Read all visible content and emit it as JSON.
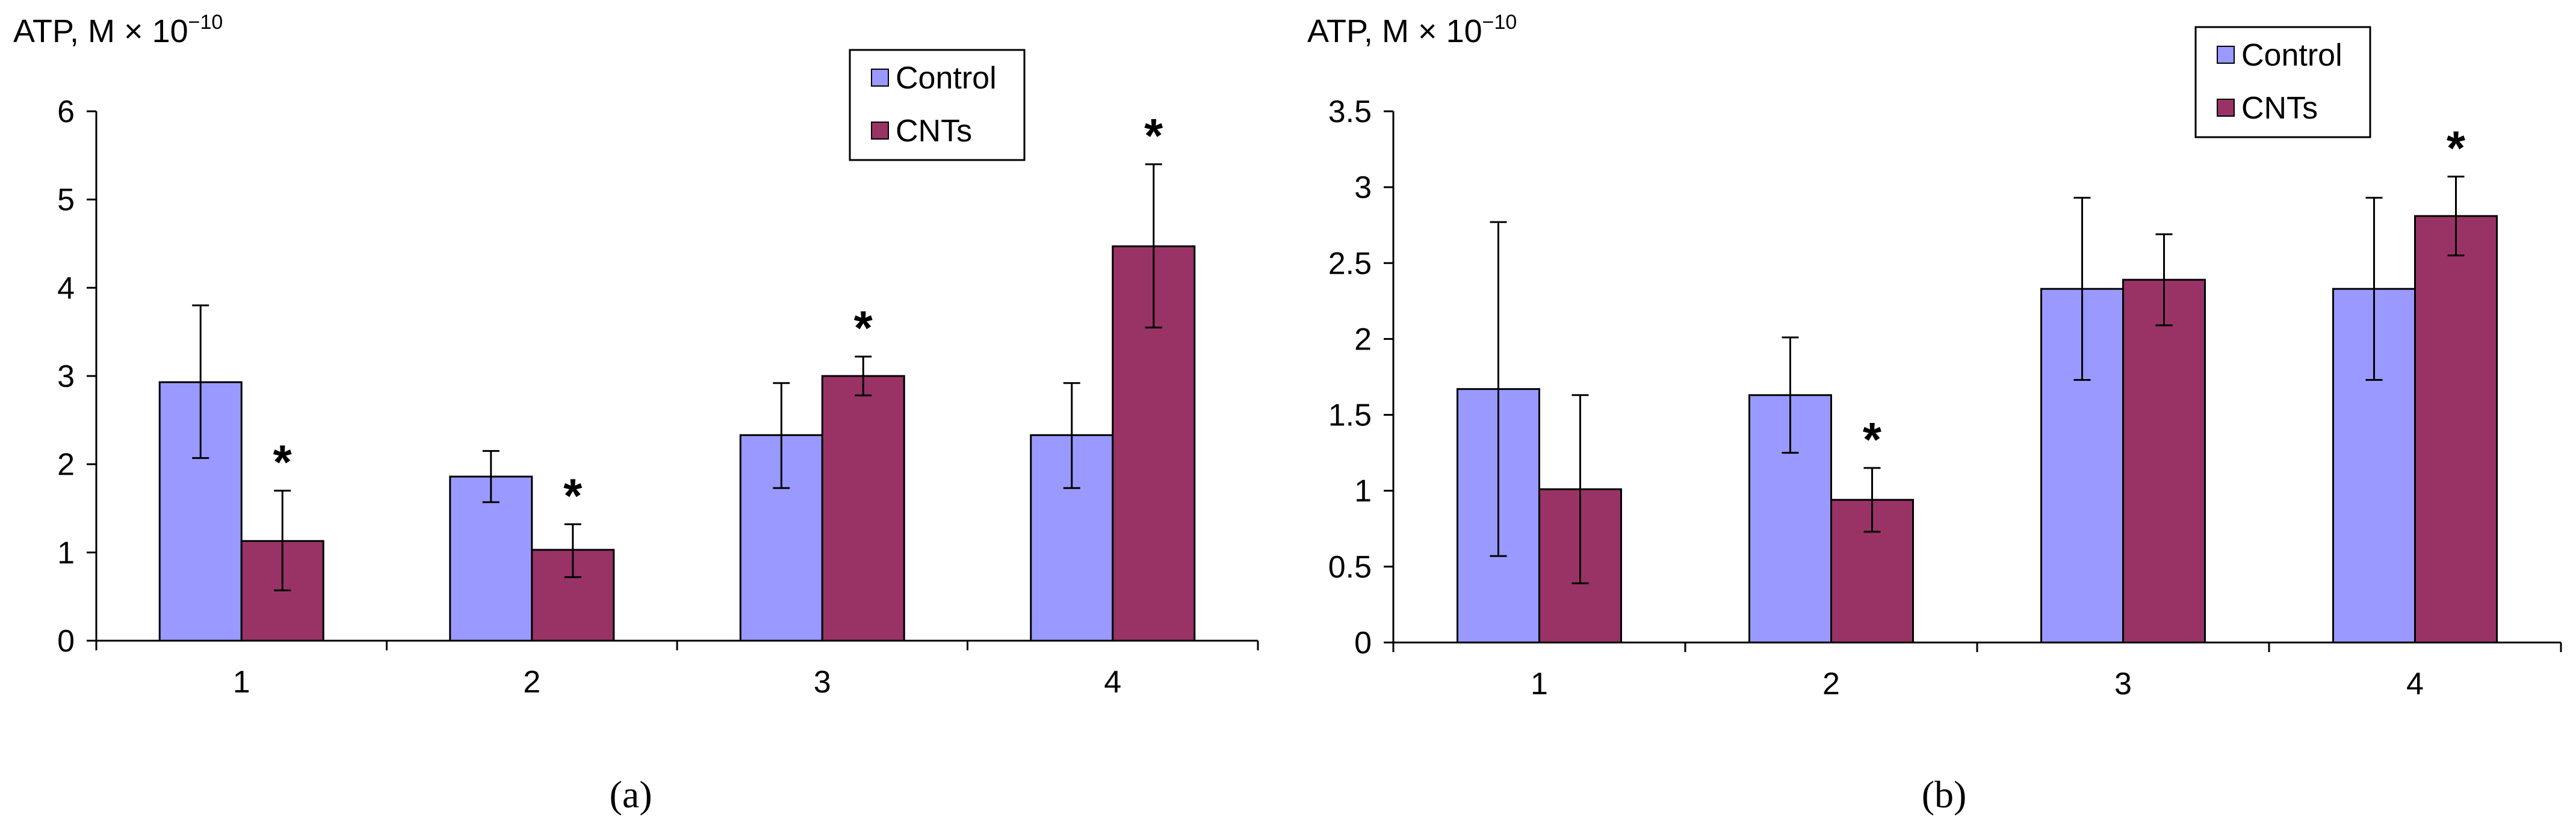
{
  "colors": {
    "control": "#9999ff",
    "cnts": "#993366",
    "axis": "#000000"
  },
  "chart_data": [
    {
      "type": "bar",
      "panel": "a",
      "panel_label": "(a)",
      "ylabel": "ATP, M × 10",
      "ylabel_exponent": "−10",
      "categories": [
        "1",
        "2",
        "3",
        "4"
      ],
      "ylim": [
        0,
        6
      ],
      "yticks": [
        "0",
        "1",
        "2",
        "3",
        "4",
        "5",
        "6"
      ],
      "legend": [
        "Control",
        "CNTs"
      ],
      "legend_position": "top-right",
      "series": [
        {
          "name": "Control",
          "values": [
            2.93,
            1.86,
            2.33,
            2.33
          ],
          "err_low": [
            2.07,
            1.57,
            1.73,
            1.73
          ],
          "err_high": [
            3.8,
            2.15,
            2.92,
            2.92
          ]
        },
        {
          "name": "CNTs",
          "values": [
            1.13,
            1.03,
            3.0,
            4.47
          ],
          "err_low": [
            0.57,
            0.72,
            2.78,
            3.55
          ],
          "err_high": [
            1.7,
            1.32,
            3.22,
            5.4
          ]
        }
      ],
      "significance": [
        "*",
        "*",
        "*",
        "*"
      ]
    },
    {
      "type": "bar",
      "panel": "b",
      "panel_label": "(b)",
      "ylabel": "ATP, M × 10",
      "ylabel_exponent": "−10",
      "categories": [
        "1",
        "2",
        "3",
        "4"
      ],
      "ylim": [
        0,
        3.5
      ],
      "yticks": [
        "0",
        "0.5",
        "1",
        "1.5",
        "2",
        "2.5",
        "3",
        "3.5"
      ],
      "legend": [
        "Control",
        "CNTs"
      ],
      "legend_position": "top-right",
      "series": [
        {
          "name": "Control",
          "values": [
            1.67,
            1.63,
            2.33,
            2.33
          ],
          "err_low": [
            0.57,
            1.25,
            1.73,
            1.73
          ],
          "err_high": [
            2.77,
            2.01,
            2.93,
            2.93
          ]
        },
        {
          "name": "CNTs",
          "values": [
            1.01,
            0.94,
            2.39,
            2.81
          ],
          "err_low": [
            0.39,
            0.73,
            2.09,
            2.55
          ],
          "err_high": [
            1.63,
            1.15,
            2.69,
            3.07
          ]
        }
      ],
      "significance": [
        "",
        "*",
        "",
        "*"
      ]
    }
  ]
}
